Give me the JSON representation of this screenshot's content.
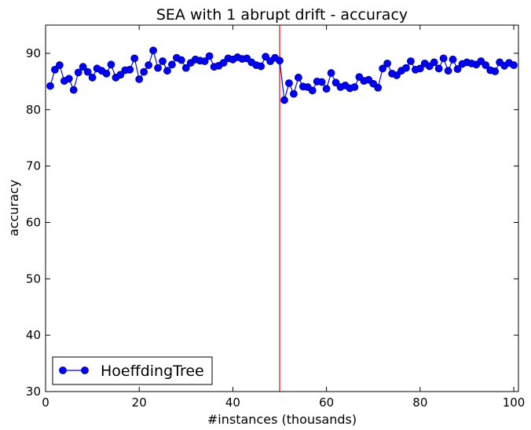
{
  "chart_data": {
    "type": "line",
    "title": "SEA with 1 abrupt drift - accuracy",
    "xlabel": "#instances (thousands)",
    "ylabel": "accuracy",
    "xlim": [
      0,
      101
    ],
    "ylim": [
      30,
      95
    ],
    "xticks": [
      0,
      20,
      40,
      60,
      80,
      100
    ],
    "yticks": [
      30,
      40,
      50,
      60,
      70,
      80,
      90
    ],
    "grid": false,
    "legend_position": "lower-left",
    "drift_line_x": 50,
    "colors": {
      "series": "#0000ff",
      "marker_edge": "#000080",
      "drift": "#ff0000"
    },
    "series": [
      {
        "name": "HoeffdingTree",
        "x": [
          1,
          2,
          3,
          4,
          5,
          6,
          7,
          8,
          9,
          10,
          11,
          12,
          13,
          14,
          15,
          16,
          17,
          18,
          19,
          20,
          21,
          22,
          23,
          24,
          25,
          26,
          27,
          28,
          29,
          30,
          31,
          32,
          33,
          34,
          35,
          36,
          37,
          38,
          39,
          40,
          41,
          42,
          43,
          44,
          45,
          46,
          47,
          48,
          49,
          50,
          51,
          52,
          53,
          54,
          55,
          56,
          57,
          58,
          59,
          60,
          61,
          62,
          63,
          64,
          65,
          66,
          67,
          68,
          69,
          70,
          71,
          72,
          73,
          74,
          75,
          76,
          77,
          78,
          79,
          80,
          81,
          82,
          83,
          84,
          85,
          86,
          87,
          88,
          89,
          90,
          91,
          92,
          93,
          94,
          95,
          96,
          97,
          98,
          99,
          100
        ],
        "y": [
          84.2,
          87.1,
          87.9,
          85.1,
          85.5,
          83.5,
          86.6,
          87.6,
          86.7,
          85.7,
          87.3,
          86.9,
          86.4,
          88.0,
          85.7,
          86.2,
          87.0,
          87.1,
          89.1,
          85.4,
          86.7,
          87.9,
          90.5,
          87.4,
          88.6,
          86.9,
          88.0,
          89.2,
          88.8,
          87.4,
          88.3,
          88.9,
          88.7,
          88.6,
          89.5,
          87.6,
          87.8,
          88.3,
          89.1,
          88.9,
          89.3,
          89.0,
          89.1,
          88.4,
          87.9,
          87.7,
          89.4,
          88.6,
          89.2,
          88.7,
          81.7,
          84.7,
          82.8,
          85.7,
          84.1,
          84.0,
          83.4,
          85.0,
          84.9,
          83.7,
          86.5,
          84.8,
          84.0,
          84.3,
          83.8,
          84.0,
          85.8,
          85.1,
          85.3,
          84.6,
          83.9,
          87.3,
          88.2,
          86.4,
          86.1,
          86.9,
          87.4,
          88.6,
          87.1,
          87.3,
          88.2,
          87.7,
          88.4,
          87.3,
          89.1,
          86.9,
          88.9,
          87.2,
          88.1,
          88.4,
          88.2,
          88.0,
          88.6,
          87.9,
          87.0,
          86.8,
          88.4,
          87.8,
          88.3,
          87.9
        ]
      }
    ]
  }
}
